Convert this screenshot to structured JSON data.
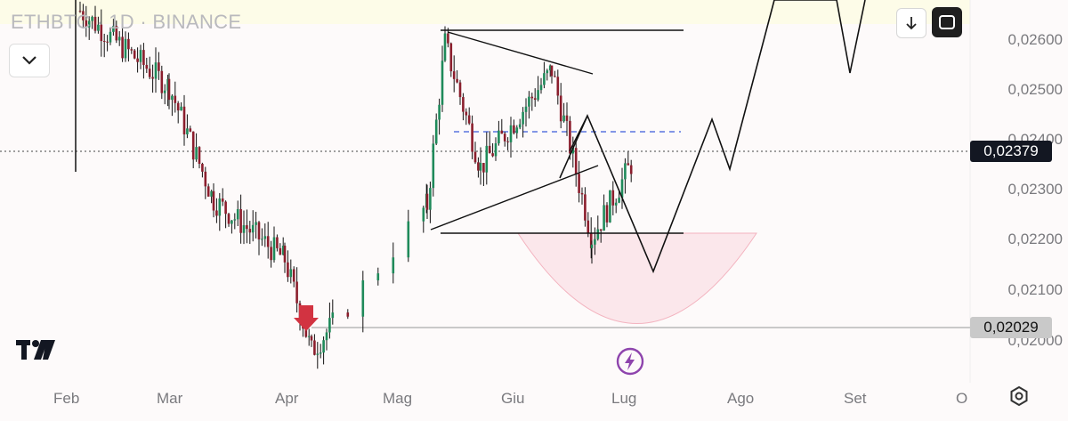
{
  "header": {
    "title": "ETHBTC · 1D · BINANCE"
  },
  "toolbar": {
    "collapse_icon": "chevron-down-icon",
    "download_icon": "arrow-down-icon",
    "fullscreen_icon": "fullscreen-icon"
  },
  "price_axis": {
    "labels": [
      "0,02600",
      "0,02500",
      "0,02400",
      "0,02300",
      "0,02200",
      "0,02100",
      "0,02000"
    ]
  },
  "time_axis": {
    "labels": [
      "Feb",
      "Mar",
      "Apr",
      "Mag",
      "Giu",
      "Lug",
      "Ago",
      "Set",
      "O"
    ]
  },
  "current_price": {
    "value": "0,02379",
    "color": "#131722"
  },
  "support_price": {
    "value": "0,02029",
    "color": "#c9c9c9"
  },
  "colors": {
    "bull": "#1f8a5a",
    "bear": "#8b1e2d",
    "arrow": "#d23341",
    "arc": "#f3cfd6",
    "dashed": "#3b5bdb",
    "flash": "#8e44ad"
  },
  "chart_data": {
    "type": "candlestick",
    "symbol": "ETHBTC",
    "interval": "1D",
    "exchange": "BINANCE",
    "ylim": [
      0.0198,
      0.0268
    ],
    "current_price": 0.02379,
    "support": 0.02029,
    "key_closes": [
      {
        "month": "Feb",
        "close": 0.0266
      },
      {
        "month": "Mar",
        "close": 0.0252
      },
      {
        "month": "Mar",
        "close": 0.0231
      },
      {
        "month": "Apr",
        "close": 0.022
      },
      {
        "month": "Apr",
        "close": 0.0203
      },
      {
        "month": "Mag",
        "close": 0.023
      },
      {
        "month": "Mag",
        "close": 0.026
      },
      {
        "month": "Giu",
        "close": 0.0237
      },
      {
        "month": "Giu",
        "close": 0.0255
      },
      {
        "month": "Lug",
        "close": 0.0224
      },
      {
        "month": "Lug",
        "close": 0.02379
      }
    ]
  }
}
